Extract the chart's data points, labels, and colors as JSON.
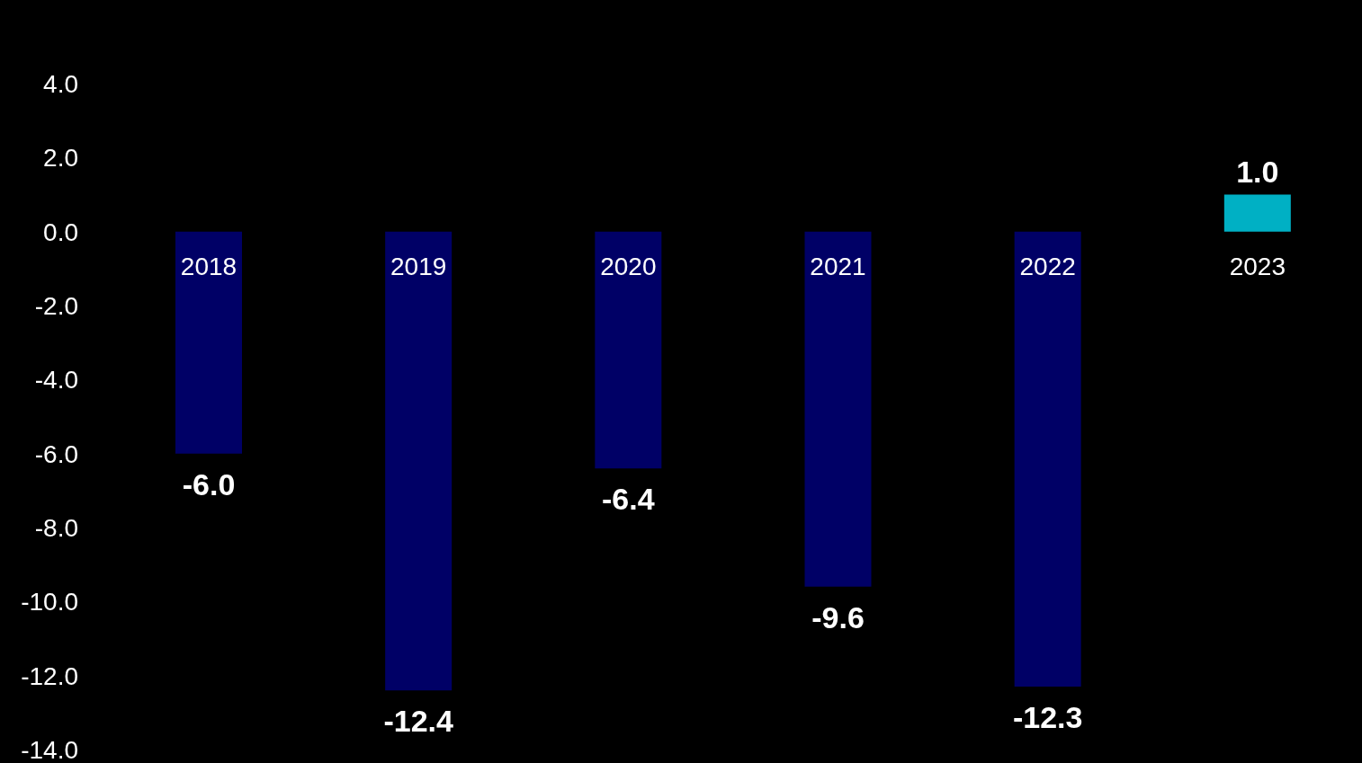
{
  "chart_data": {
    "type": "bar",
    "categories": [
      "2018",
      "2019",
      "2020",
      "2021",
      "2022",
      "2023"
    ],
    "values": [
      -6.0,
      -12.4,
      -6.4,
      -9.6,
      -12.3,
      1.0
    ],
    "colors": [
      "#000066",
      "#000066",
      "#000066",
      "#000066",
      "#000066",
      "#00b0c4"
    ],
    "value_labels": [
      "-6.0",
      "-12.4",
      "-6.4",
      "-9.6",
      "-12.3",
      "1.0"
    ],
    "ylim": [
      -14,
      4
    ],
    "yticks": [
      {
        "value": 4,
        "label": "4.0"
      },
      {
        "value": 2,
        "label": "2.0"
      },
      {
        "value": 0,
        "label": "0.0"
      },
      {
        "value": -2,
        "label": "-2.0"
      },
      {
        "value": -4,
        "label": "-4.0"
      },
      {
        "value": -6,
        "label": "-6.0"
      },
      {
        "value": -8,
        "label": "-8.0"
      },
      {
        "value": -10,
        "label": "-10.0"
      },
      {
        "value": -12,
        "label": "-12.0"
      },
      {
        "value": -14,
        "label": "-14.0"
      }
    ],
    "grid": false,
    "legend": false
  }
}
